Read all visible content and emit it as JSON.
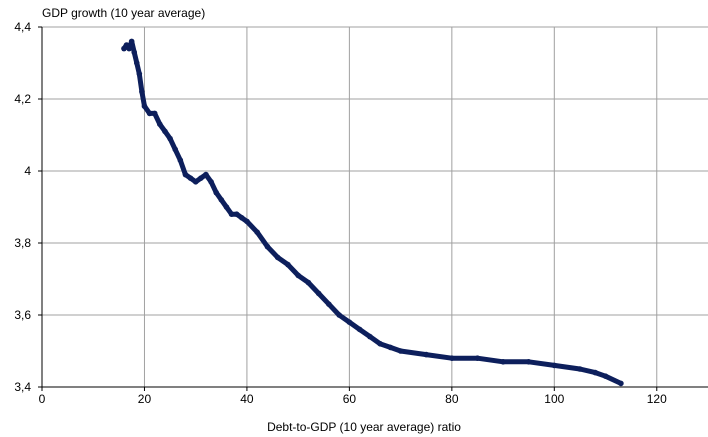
{
  "chart_data": {
    "type": "scatter",
    "ylabel": "GDP growth (10 year average)",
    "xlabel": "Debt-to-GDP (10 year average) ratio",
    "xlim": [
      0,
      130
    ],
    "ylim": [
      3.4,
      4.4
    ],
    "xticks": [
      0,
      20,
      40,
      60,
      80,
      100,
      120
    ],
    "xtick_labels": [
      "0",
      "20",
      "40",
      "60",
      "80",
      "100",
      "120"
    ],
    "yticks": [
      3.4,
      3.6,
      3.8,
      4.0,
      4.2,
      4.4
    ],
    "ytick_labels": [
      "3,4",
      "3,6",
      "3,8",
      "4",
      "4,2",
      "4,4"
    ],
    "grid": true,
    "series": [
      {
        "color": "#0d1f5c",
        "x": [
          16,
          16.5,
          17,
          17.5,
          18,
          18.5,
          19,
          19.5,
          20,
          21,
          22,
          23,
          24,
          25,
          26,
          27,
          28,
          29,
          30,
          31,
          32,
          33,
          34,
          35,
          36,
          37,
          38,
          39,
          40,
          42,
          44,
          46,
          48,
          50,
          52,
          54,
          56,
          58,
          60,
          62,
          64,
          66,
          68,
          70,
          75,
          80,
          85,
          90,
          95,
          100,
          105,
          108,
          110,
          113
        ],
        "y": [
          4.34,
          4.35,
          4.34,
          4.36,
          4.33,
          4.3,
          4.27,
          4.22,
          4.18,
          4.16,
          4.16,
          4.13,
          4.11,
          4.09,
          4.06,
          4.03,
          3.99,
          3.98,
          3.97,
          3.98,
          3.99,
          3.97,
          3.94,
          3.92,
          3.9,
          3.88,
          3.88,
          3.87,
          3.86,
          3.83,
          3.79,
          3.76,
          3.74,
          3.71,
          3.69,
          3.66,
          3.63,
          3.6,
          3.58,
          3.56,
          3.54,
          3.52,
          3.51,
          3.5,
          3.49,
          3.48,
          3.48,
          3.47,
          3.47,
          3.46,
          3.45,
          3.44,
          3.43,
          3.41
        ]
      }
    ]
  }
}
